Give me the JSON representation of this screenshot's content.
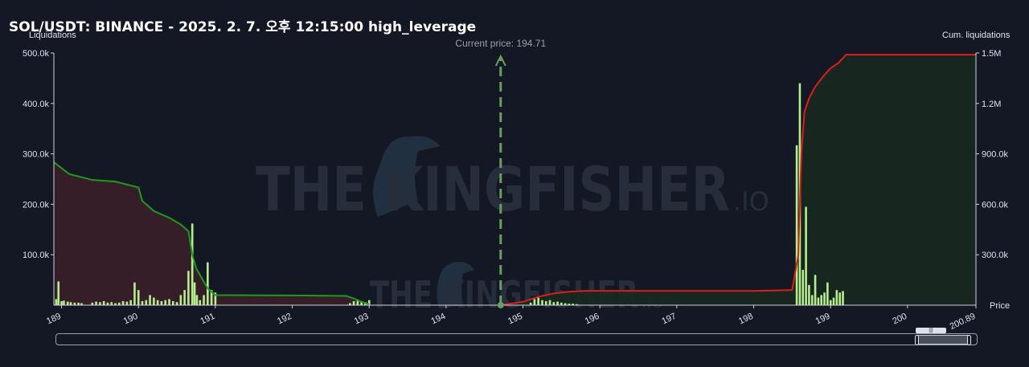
{
  "title": "SOL/USDT: BINANCE - 2025. 2. 7. 오후 12:15:00 high_leverage",
  "colors": {
    "background": "#141824",
    "long_area": "#3a1f29",
    "short_area": "#17291f",
    "long_line": "#1f9a1f",
    "short_line": "#e01b1b",
    "bar": "#b5ee8f",
    "price_marker": "#6a9e60",
    "grid": "#232838"
  },
  "watermark": {
    "main": "THE KINGFISHER",
    "suffix": ".IO"
  },
  "chart_data": {
    "type": "bar",
    "title": "SOL/USDT: BINANCE - 2025. 2. 7. 오후 12:15:00 high_leverage",
    "ylabel": "Liquidations",
    "y2label": "Cum. liquidations",
    "xlabel": "Price",
    "current_price_label": "Current price: 194.71",
    "current_price": 194.71,
    "xlim": [
      188.9,
      200.89
    ],
    "ylim": [
      0,
      500000
    ],
    "y2lim": [
      0,
      1500000
    ],
    "x_ticks": [
      "189",
      "190",
      "191",
      "192",
      "193",
      "194",
      "195",
      "196",
      "197",
      "198",
      "199",
      "200",
      "200.89"
    ],
    "y_ticks": [
      "500.0k",
      "400.0k",
      "300.0k",
      "200.0k",
      "100.0k"
    ],
    "y2_ticks": [
      "1.5M",
      "1.2M",
      "900.0k",
      "600.0k",
      "300.0k"
    ],
    "series": [
      {
        "name": "Liquidations",
        "type": "bar",
        "x": [
          188.93,
          188.96,
          189.0,
          189.03,
          189.08,
          189.12,
          189.17,
          189.22,
          189.26,
          189.4,
          189.45,
          189.5,
          189.55,
          189.6,
          189.65,
          189.7,
          189.75,
          189.8,
          189.85,
          189.9,
          189.95,
          190.0,
          190.05,
          190.1,
          190.15,
          190.2,
          190.25,
          190.3,
          190.35,
          190.4,
          190.45,
          190.5,
          190.55,
          190.6,
          190.65,
          190.7,
          190.73,
          190.76,
          190.8,
          190.85,
          190.9,
          190.95,
          191.0,
          192.75,
          192.8,
          192.85,
          192.9,
          192.95,
          193.0,
          195.1,
          195.15,
          195.2,
          195.25,
          195.3,
          195.35,
          195.4,
          195.45,
          195.5,
          195.55,
          195.6,
          195.65,
          195.7,
          198.56,
          198.6,
          198.64,
          198.68,
          198.72,
          198.76,
          198.8,
          198.84,
          198.88,
          198.92,
          198.96,
          199.0,
          199.04,
          199.08,
          199.12,
          199.16,
          199.2
        ],
        "values": [
          12000,
          47000,
          8000,
          9000,
          7000,
          6000,
          5000,
          5000,
          4000,
          5000,
          7000,
          6000,
          8000,
          5000,
          6000,
          4000,
          5000,
          8000,
          7000,
          10000,
          45000,
          30000,
          8000,
          10000,
          20000,
          15000,
          10000,
          8000,
          10000,
          12000,
          8000,
          6000,
          20000,
          30000,
          68000,
          162000,
          45000,
          20000,
          10000,
          20000,
          85000,
          30000,
          25000,
          4000,
          8000,
          10000,
          8000,
          6000,
          10000,
          5000,
          12000,
          15000,
          10000,
          8000,
          10000,
          6000,
          7000,
          5000,
          4000,
          3000,
          3000,
          2000,
          317000,
          440000,
          70000,
          195000,
          40000,
          20000,
          60000,
          15000,
          20000,
          25000,
          45000,
          10000,
          15000,
          30000,
          25000,
          28000,
          0
        ]
      },
      {
        "name": "Cum. liquidations (longs)",
        "type": "line",
        "x": [
          188.9,
          189.1,
          189.4,
          189.7,
          190.0,
          190.05,
          190.2,
          190.4,
          190.55,
          190.65,
          190.7,
          190.75,
          190.8,
          190.9,
          191.0,
          192.0,
          192.7,
          192.8,
          192.9,
          193.0
        ],
        "values": [
          850000,
          780000,
          745000,
          735000,
          700000,
          620000,
          560000,
          520000,
          480000,
          440000,
          300000,
          220000,
          180000,
          100000,
          60000,
          58000,
          55000,
          40000,
          20000,
          5000
        ]
      },
      {
        "name": "Cum. liquidations (shorts)",
        "type": "line",
        "x": [
          194.71,
          195.0,
          195.2,
          195.4,
          195.6,
          195.8,
          196.0,
          197.0,
          198.0,
          198.5,
          198.58,
          198.62,
          198.66,
          198.72,
          198.8,
          198.92,
          199.0,
          199.1,
          199.2,
          200.0,
          200.89
        ],
        "values": [
          0,
          20000,
          50000,
          70000,
          80000,
          85000,
          85000,
          85000,
          85000,
          90000,
          300000,
          900000,
          1150000,
          1230000,
          1300000,
          1370000,
          1410000,
          1440000,
          1490000,
          1490000,
          1490000
        ]
      }
    ],
    "grid": false,
    "legend": "none"
  }
}
